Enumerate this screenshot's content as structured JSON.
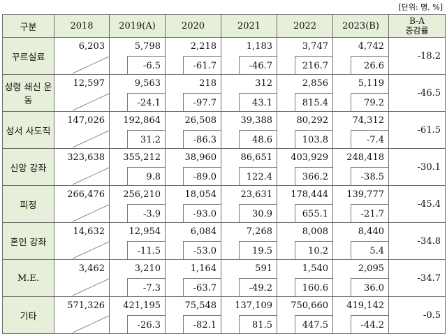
{
  "unit_note": "[단위: 명, %]",
  "headers": [
    "구분",
    "2018",
    "2019(A)",
    "2020",
    "2021",
    "2022",
    "2023(B)"
  ],
  "header_ba": [
    "B-A",
    "증감률"
  ],
  "rows": [
    {
      "label": "꾸르실료",
      "y2018": "6,203",
      "cells": [
        [
          "5,798",
          "-6.5"
        ],
        [
          "2,218",
          "-61.7"
        ],
        [
          "1,183",
          "-46.7"
        ],
        [
          "3,747",
          "216.7"
        ],
        [
          "4,742",
          "26.6"
        ]
      ],
      "ba": "-18.2"
    },
    {
      "label": "성령 쇄신 운동",
      "y2018": "12,597",
      "cells": [
        [
          "9,563",
          "-24.1"
        ],
        [
          "218",
          "-97.7"
        ],
        [
          "312",
          "43.1"
        ],
        [
          "2,856",
          "815.4"
        ],
        [
          "5,119",
          "79.2"
        ]
      ],
      "ba": "-46.5"
    },
    {
      "label": "성서 사도직",
      "y2018": "147,026",
      "cells": [
        [
          "192,864",
          "31.2"
        ],
        [
          "26,508",
          "-86.3"
        ],
        [
          "39,388",
          "48.6"
        ],
        [
          "80,292",
          "103.8"
        ],
        [
          "74,312",
          "-7.4"
        ]
      ],
      "ba": "-61.5"
    },
    {
      "label": "신앙 강좌",
      "y2018": "323,638",
      "cells": [
        [
          "355,212",
          "9.8"
        ],
        [
          "38,960",
          "-89.0"
        ],
        [
          "86,651",
          "122.4"
        ],
        [
          "403,929",
          "366.2"
        ],
        [
          "248,418",
          "-38.5"
        ]
      ],
      "ba": "-30.1"
    },
    {
      "label": "피정",
      "y2018": "266,476",
      "cells": [
        [
          "256,210",
          "-3.9"
        ],
        [
          "18,054",
          "-93.0"
        ],
        [
          "23,631",
          "30.9"
        ],
        [
          "178,444",
          "655.1"
        ],
        [
          "139,777",
          "-21.7"
        ]
      ],
      "ba": "-45.4"
    },
    {
      "label": "혼인 강좌",
      "y2018": "14,632",
      "cells": [
        [
          "12,954",
          "-11.5"
        ],
        [
          "6,084",
          "-53.0"
        ],
        [
          "7,268",
          "19.5"
        ],
        [
          "8,008",
          "10.2"
        ],
        [
          "8,440",
          "5.4"
        ]
      ],
      "ba": "-34.8"
    },
    {
      "label": "M.E.",
      "y2018": "3,462",
      "cells": [
        [
          "3,210",
          "-7.3"
        ],
        [
          "1,164",
          "-63.7"
        ],
        [
          "591",
          "-49.2"
        ],
        [
          "1,540",
          "160.6"
        ],
        [
          "2,095",
          "36.0"
        ]
      ],
      "ba": "-34.7"
    },
    {
      "label": "기타",
      "y2018": "571,326",
      "cells": [
        [
          "421,195",
          "-26.3"
        ],
        [
          "75,548",
          "-82.1"
        ],
        [
          "137,109",
          "81.5"
        ],
        [
          "750,660",
          "447.5"
        ],
        [
          "419,142",
          "-44.2"
        ]
      ],
      "ba": "-0.5"
    }
  ]
}
